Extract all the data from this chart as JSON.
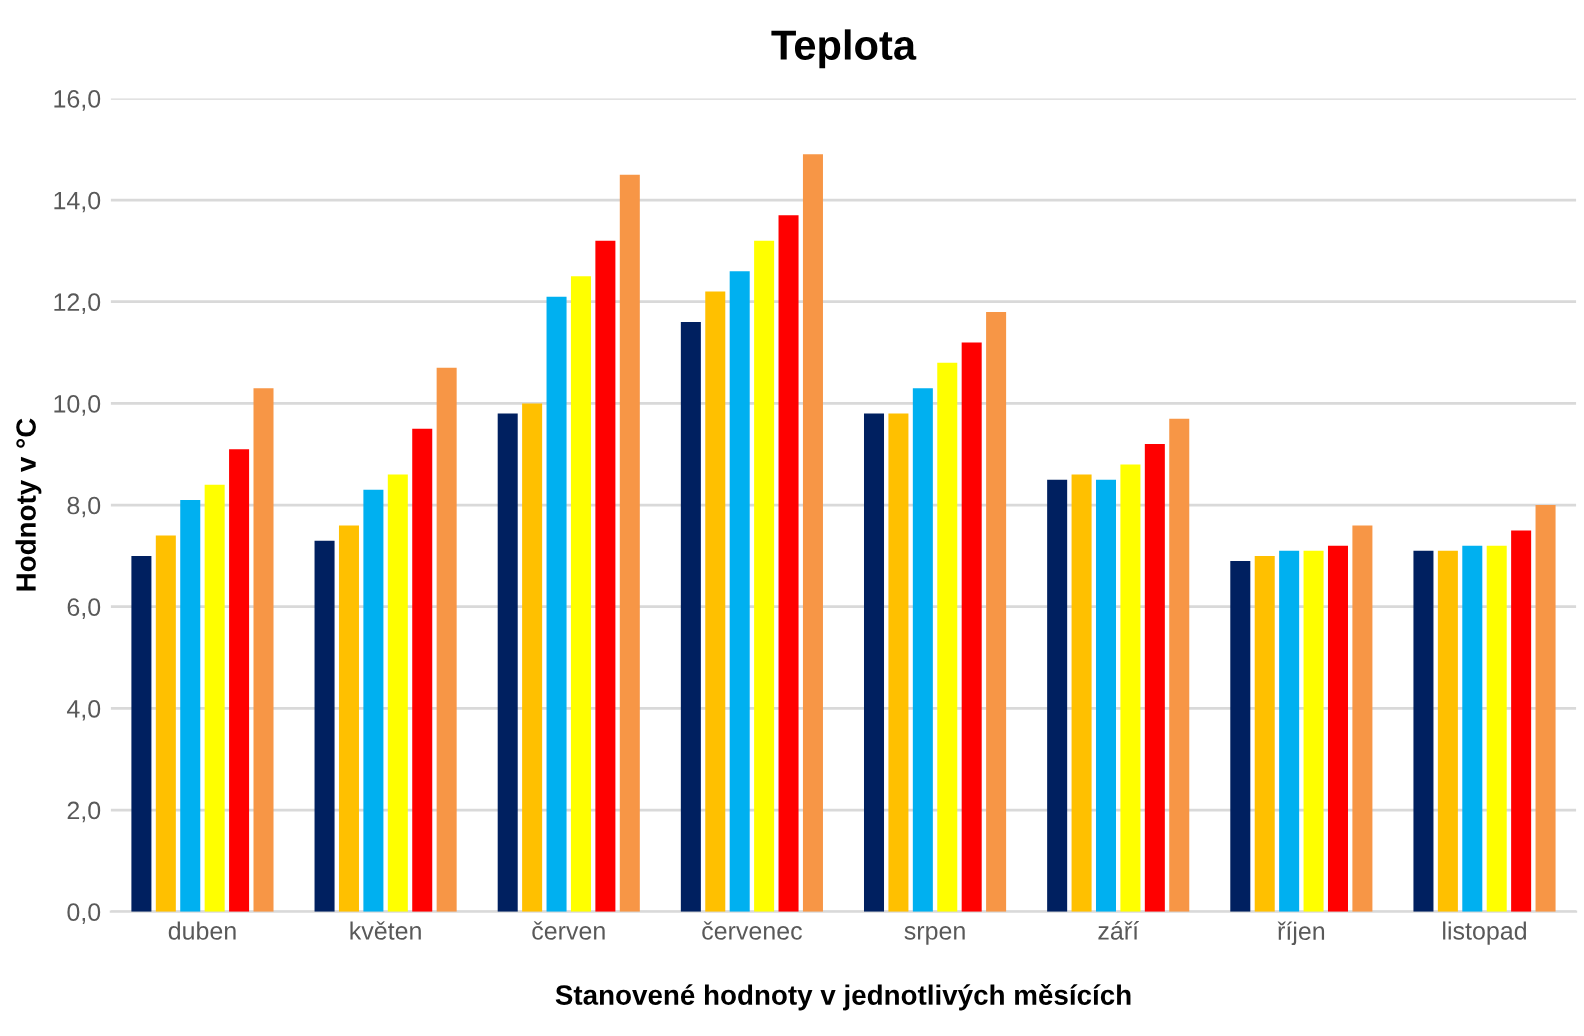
{
  "chart_data": {
    "type": "bar",
    "title": "Teplota",
    "xlabel": "Stanovené hodnoty v jednotlivých měsících",
    "ylabel": "Hodnoty v °C",
    "categories": [
      "duben",
      "květen",
      "červen",
      "červenec",
      "srpen",
      "září",
      "říjen",
      "listopad"
    ],
    "series": [
      {
        "color": "#002060",
        "values": [
          7.0,
          7.3,
          9.8,
          11.6,
          9.8,
          8.5,
          6.9,
          7.1
        ]
      },
      {
        "color": "#ffc000",
        "values": [
          7.4,
          7.6,
          10.0,
          12.2,
          9.8,
          8.6,
          7.0,
          7.1
        ]
      },
      {
        "color": "#00b0f0",
        "values": [
          8.1,
          8.3,
          12.1,
          12.6,
          10.3,
          8.5,
          7.1,
          7.2
        ]
      },
      {
        "color": "#ffff00",
        "values": [
          8.4,
          8.6,
          12.5,
          13.2,
          10.8,
          8.8,
          7.1,
          7.2
        ]
      },
      {
        "color": "#ff0000",
        "values": [
          9.1,
          9.5,
          13.2,
          13.7,
          11.2,
          9.2,
          7.2,
          7.5
        ]
      },
      {
        "color": "#f79646",
        "values": [
          10.3,
          10.7,
          14.5,
          14.9,
          11.8,
          9.7,
          7.6,
          8.0
        ]
      }
    ],
    "ylim": [
      0,
      16
    ],
    "yticks": [
      {
        "value": 0,
        "label": "0,0"
      },
      {
        "value": 2,
        "label": "2,0"
      },
      {
        "value": 4,
        "label": "4,0"
      },
      {
        "value": 6,
        "label": "6,0"
      },
      {
        "value": 8,
        "label": "8,0"
      },
      {
        "value": 10,
        "label": "10,0"
      },
      {
        "value": 12,
        "label": "12,0"
      },
      {
        "value": 14,
        "label": "14,0"
      },
      {
        "value": 16,
        "label": "16,0"
      }
    ],
    "grid": "y",
    "legend": false
  }
}
